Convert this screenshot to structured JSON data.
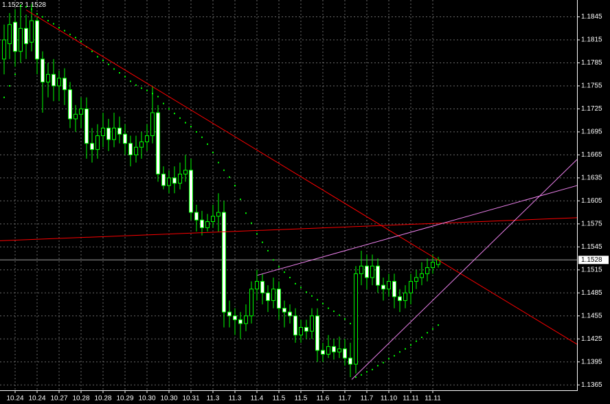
{
  "chart_data": {
    "type": "candlestick",
    "quote": [
      1.1522,
      1.1528
    ],
    "categories": [
      null,
      null,
      "10.24",
      null,
      null,
      null,
      "10.24",
      null,
      null,
      null,
      "10.27",
      null,
      null,
      null,
      "10.28",
      null,
      null,
      null,
      "10.28",
      null,
      null,
      null,
      "10.29",
      null,
      null,
      null,
      "10.30",
      null,
      null,
      null,
      "10.30",
      null,
      null,
      null,
      "10.31",
      null,
      null,
      null,
      "11.3",
      null,
      null,
      null,
      "11.3",
      null,
      null,
      null,
      "11.4",
      null,
      null,
      null,
      "11.5",
      null,
      null,
      null,
      "11.5",
      null,
      null,
      null,
      "11.6",
      null,
      null,
      null,
      "11.7",
      null,
      null,
      null,
      "11.7",
      null,
      null,
      null,
      "11.10",
      null,
      null,
      null,
      "11.11",
      null,
      null,
      null,
      "11.11",
      null
    ],
    "open": [
      1.179,
      1.181,
      1.1838,
      1.18,
      1.183,
      1.1812,
      1.184,
      1.179,
      1.176,
      1.177,
      1.1755,
      1.1765,
      1.175,
      1.1712,
      1.1718,
      1.1725,
      1.168,
      1.1672,
      1.169,
      1.17,
      1.1685,
      1.17,
      1.1692,
      1.168,
      1.1665,
      1.1675,
      1.1682,
      1.169,
      1.172,
      1.164,
      1.1625,
      1.1635,
      1.1628,
      1.164,
      1.1645,
      1.159,
      1.158,
      1.157,
      1.1578,
      1.1585,
      1.159,
      1.146,
      1.1455,
      1.145,
      1.1445,
      1.1455,
      1.149,
      1.15,
      1.1485,
      1.1475,
      1.149,
      1.1465,
      1.146,
      1.1455,
      1.143,
      1.144,
      1.1435,
      1.1455,
      1.141,
      1.1405,
      1.1415,
      1.1408,
      1.1412,
      1.14,
      1.1392,
      1.151,
      1.152,
      1.1505,
      1.152,
      1.1495,
      1.149,
      1.15,
      1.148,
      1.1475,
      1.1485,
      1.15,
      1.1505,
      1.151,
      1.1518,
      1.1522
    ],
    "high": [
      1.1835,
      1.185,
      1.1855,
      1.186,
      1.1848,
      1.1862,
      1.1845,
      1.18,
      1.1785,
      1.179,
      1.1775,
      1.1778,
      1.176,
      1.173,
      1.174,
      1.174,
      1.17,
      1.1705,
      1.172,
      1.1712,
      1.172,
      1.1715,
      1.1705,
      1.169,
      1.169,
      1.1695,
      1.1705,
      1.1755,
      1.173,
      1.165,
      1.1645,
      1.165,
      1.1655,
      1.1665,
      1.166,
      1.16,
      1.1592,
      1.1588,
      1.16,
      1.1615,
      1.1605,
      1.1475,
      1.1465,
      1.146,
      1.147,
      1.15,
      1.1515,
      1.151,
      1.1495,
      1.1505,
      1.15,
      1.1475,
      1.147,
      1.1465,
      1.145,
      1.145,
      1.1465,
      1.1465,
      1.142,
      1.143,
      1.1425,
      1.1428,
      1.1425,
      1.142,
      1.152,
      1.154,
      1.1535,
      1.1535,
      1.153,
      1.1505,
      1.151,
      1.151,
      1.149,
      1.1495,
      1.151,
      1.1515,
      1.1525,
      1.153,
      1.1535,
      1.1532
    ],
    "low": [
      1.177,
      1.179,
      1.178,
      1.1785,
      1.179,
      1.18,
      1.177,
      1.172,
      1.174,
      1.1735,
      1.1735,
      1.173,
      1.17,
      1.1695,
      1.17,
      1.166,
      1.1655,
      1.166,
      1.1675,
      1.167,
      1.1675,
      1.168,
      1.1665,
      1.165,
      1.1655,
      1.166,
      1.167,
      1.168,
      1.163,
      1.162,
      1.1615,
      1.1615,
      1.162,
      1.163,
      1.158,
      1.1565,
      1.156,
      1.1565,
      1.157,
      1.1565,
      1.144,
      1.144,
      1.143,
      1.1425,
      1.1435,
      1.1445,
      1.1475,
      1.147,
      1.146,
      1.1465,
      1.145,
      1.144,
      1.1445,
      1.142,
      1.142,
      1.1425,
      1.1425,
      1.1395,
      1.1395,
      1.14,
      1.1398,
      1.14,
      1.139,
      1.1375,
      1.138,
      1.1495,
      1.149,
      1.1495,
      1.1485,
      1.1475,
      1.148,
      1.1465,
      1.146,
      1.1465,
      1.147,
      1.149,
      1.1495,
      1.15,
      1.151,
      1.1518
    ],
    "close": [
      1.1815,
      1.1835,
      1.18,
      1.183,
      1.181,
      1.184,
      1.179,
      1.176,
      1.177,
      1.1755,
      1.1765,
      1.175,
      1.1712,
      1.1718,
      1.1725,
      1.168,
      1.1672,
      1.169,
      1.17,
      1.1685,
      1.17,
      1.1692,
      1.168,
      1.1665,
      1.1675,
      1.1682,
      1.169,
      1.172,
      1.164,
      1.1625,
      1.1635,
      1.1628,
      1.164,
      1.1645,
      1.159,
      1.158,
      1.157,
      1.1578,
      1.1585,
      1.159,
      1.146,
      1.1455,
      1.145,
      1.1445,
      1.1455,
      1.149,
      1.15,
      1.1485,
      1.1475,
      1.149,
      1.1465,
      1.146,
      1.1455,
      1.143,
      1.144,
      1.1435,
      1.1455,
      1.141,
      1.1405,
      1.1415,
      1.1408,
      1.1412,
      1.14,
      1.1392,
      1.151,
      1.152,
      1.1505,
      1.152,
      1.1495,
      1.149,
      1.15,
      1.148,
      1.1475,
      1.1485,
      1.15,
      1.1505,
      1.151,
      1.1518,
      1.1525,
      1.1528
    ],
    "sar": [
      1.174,
      1.1755,
      1.177,
      1.186,
      1.1858,
      1.1855,
      1.1849,
      1.1845,
      1.184,
      1.1836,
      1.1831,
      1.1827,
      1.1822,
      1.1818,
      1.1813,
      1.1806,
      1.18,
      1.1793,
      1.1788,
      1.1783,
      1.1777,
      1.1772,
      1.1767,
      1.1761,
      1.1756,
      1.1752,
      1.1749,
      1.1745,
      1.1741,
      1.1732,
      1.1725,
      1.1719,
      1.1713,
      1.1707,
      1.1702,
      1.1695,
      1.1688,
      1.1679,
      1.1668,
      1.1655,
      1.1645,
      1.1636,
      1.1625,
      1.1607,
      1.1589,
      1.1576,
      1.1562,
      1.1551,
      1.154,
      1.1528,
      1.1519,
      1.1512,
      1.1505,
      1.1497,
      1.1492,
      1.1486,
      1.1481,
      1.1476,
      1.1471,
      1.1465,
      1.1461,
      1.1456,
      1.1451,
      1.1445,
      1.1375,
      1.1378,
      1.1382,
      1.1385,
      1.139,
      1.1394,
      1.1399,
      1.1403,
      1.1408,
      1.1412,
      1.1417,
      1.1422,
      1.1427,
      1.1433,
      1.1438,
      1.1443
    ],
    "sar_color": "#00ff00",
    "up_color": "#00ff00",
    "down_color": "#ffffff",
    "trendlines": [
      {
        "color": "#ff0000",
        "x": [
          4,
          104.25
        ],
        "y": [
          1.1854,
          1.1418
        ]
      },
      {
        "color": "#ff0000",
        "x": [
          -0.75,
          104.25
        ],
        "y": [
          1.1553,
          1.1583
        ]
      },
      {
        "color": "#ee82ee",
        "x": [
          46.1,
          104.25
        ],
        "y": [
          1.1508,
          1.1625
        ]
      },
      {
        "color": "#ee82ee",
        "x": [
          63.25,
          104.25
        ],
        "y": [
          1.1372,
          1.1659
        ]
      }
    ],
    "ylim": [
      1.1358,
      1.1867
    ],
    "yticks": [
      1.1845,
      1.1815,
      1.1785,
      1.1755,
      1.1725,
      1.1695,
      1.1665,
      1.1635,
      1.1605,
      1.1575,
      1.1545,
      1.1515,
      1.1485,
      1.1455,
      1.1425,
      1.1395,
      1.1365
    ],
    "grid": true
  }
}
